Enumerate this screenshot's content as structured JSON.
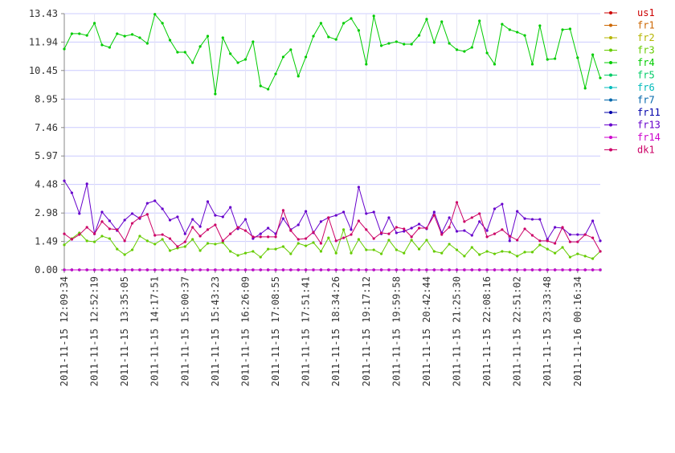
{
  "chart_data": {
    "type": "line",
    "categories": [
      "2011-11-15 12:09:34",
      null,
      null,
      null,
      "2011-11-15 12:52:19",
      null,
      null,
      null,
      "2011-11-15 13:35:05",
      null,
      null,
      null,
      "2011-11-15 14:17:51",
      null,
      null,
      null,
      "2011-11-15 15:00:37",
      null,
      null,
      null,
      "2011-11-15 15:43:23",
      null,
      null,
      null,
      "2011-11-15 16:26:09",
      null,
      null,
      null,
      "2011-11-15 17:08:55",
      null,
      null,
      null,
      "2011-11-15 17:51:41",
      null,
      null,
      null,
      "2011-11-15 18:34:26",
      null,
      null,
      null,
      "2011-11-15 19:17:12",
      null,
      null,
      null,
      "2011-11-15 19:59:58",
      null,
      null,
      null,
      "2011-11-15 20:42:44",
      null,
      null,
      null,
      "2011-11-15 21:25:30",
      null,
      null,
      null,
      "2011-11-15 22:08:16",
      null,
      null,
      null,
      "2011-11-15 22:51:02",
      null,
      null,
      null,
      "2011-11-15 23:33:48",
      null,
      null,
      null,
      "2011-11-16 00:16:34",
      null,
      null,
      null
    ],
    "ylim": [
      0,
      13.43
    ],
    "yticks": [
      {
        "value": 0,
        "label": "0.00"
      },
      1.49,
      2.98,
      4.48,
      5.97,
      7.46,
      8.95,
      10.45,
      11.94,
      13.43
    ],
    "grid": true,
    "legend": "right",
    "series": [
      {
        "name": "us1",
        "color": "#cc0000",
        "values": [
          0,
          0,
          0,
          0,
          0,
          0,
          0,
          0,
          0,
          0,
          0,
          0,
          0,
          0,
          0,
          0,
          0,
          0,
          0,
          0,
          0,
          0,
          0,
          0,
          0,
          0,
          0,
          0,
          0,
          0,
          0,
          0,
          0,
          0,
          0,
          0,
          0,
          0,
          0,
          0,
          0,
          0,
          0,
          0,
          0,
          0,
          0,
          0,
          0,
          0,
          0,
          0,
          0,
          0,
          0,
          0,
          0,
          0,
          0,
          0,
          0,
          0,
          0,
          0,
          0,
          0,
          0,
          0,
          0,
          0,
          0,
          0
        ]
      },
      {
        "name": "fr1",
        "color": "#cc6600",
        "values": [
          0,
          0,
          0,
          0,
          0,
          0,
          0,
          0,
          0,
          0,
          0,
          0,
          0,
          0,
          0,
          0,
          0,
          0,
          0,
          0,
          0,
          0,
          0,
          0,
          0,
          0,
          0,
          0,
          0,
          0,
          0,
          0,
          0,
          0,
          0,
          0,
          0,
          0,
          0,
          0,
          0,
          0,
          0,
          0,
          0,
          0,
          0,
          0,
          0,
          0,
          0,
          0,
          0,
          0,
          0,
          0,
          0,
          0,
          0,
          0,
          0,
          0,
          0,
          0,
          0,
          0,
          0,
          0,
          0,
          0,
          0,
          0
        ]
      },
      {
        "name": "fr2",
        "color": "#b5b500",
        "values": [
          0,
          0,
          0,
          0,
          0,
          0,
          0,
          0,
          0,
          0,
          0,
          0,
          0,
          0,
          0,
          0,
          0,
          0,
          0,
          0,
          0,
          0,
          0,
          0,
          0,
          0,
          0,
          0,
          0,
          0,
          0,
          0,
          0,
          0,
          0,
          0,
          0,
          0,
          0,
          0,
          0,
          0,
          0,
          0,
          0,
          0,
          0,
          0,
          0,
          0,
          0,
          0,
          0,
          0,
          0,
          0,
          0,
          0,
          0,
          0,
          0,
          0,
          0,
          0,
          0,
          0,
          0,
          0,
          0,
          0,
          0,
          0
        ]
      },
      {
        "name": "fr3",
        "color": "#66cc00",
        "values": [
          1.31,
          1.64,
          1.94,
          1.52,
          1.47,
          1.77,
          1.64,
          1.09,
          0.8,
          1.05,
          1.77,
          1.52,
          1.35,
          1.6,
          1.01,
          1.14,
          1.22,
          1.6,
          1.01,
          1.39,
          1.35,
          1.43,
          0.97,
          0.76,
          0.88,
          0.97,
          0.67,
          1.09,
          1.09,
          1.22,
          0.84,
          1.39,
          1.26,
          1.43,
          0.97,
          1.68,
          0.88,
          2.11,
          0.88,
          1.6,
          1.05,
          1.05,
          0.84,
          1.56,
          1.05,
          0.88,
          1.56,
          1.09,
          1.56,
          0.97,
          0.88,
          1.35,
          1.05,
          0.72,
          1.18,
          0.8,
          0.97,
          0.84,
          0.97,
          0.93,
          0.72,
          0.93,
          0.93,
          1.31,
          1.09,
          0.88,
          1.18,
          0.67,
          0.84,
          0.72,
          0.59,
          0.97
        ]
      },
      {
        "name": "fr4",
        "color": "#00cc00",
        "values": [
          11.58,
          12.38,
          12.38,
          12.29,
          12.93,
          11.79,
          11.66,
          12.38,
          12.25,
          12.34,
          12.17,
          11.87,
          13.4,
          12.93,
          12.04,
          11.41,
          11.41,
          10.86,
          11.71,
          12.25,
          9.22,
          12.17,
          11.33,
          10.86,
          11.03,
          11.96,
          9.64,
          9.47,
          10.27,
          11.16,
          11.54,
          10.15,
          11.16,
          12.25,
          12.93,
          12.21,
          12.08,
          12.93,
          13.18,
          12.55,
          10.78,
          13.31,
          11.75,
          11.87,
          11.96,
          11.83,
          11.83,
          12.29,
          13.14,
          11.92,
          13.01,
          11.87,
          11.54,
          11.45,
          11.66,
          13.05,
          11.37,
          10.78,
          12.88,
          12.59,
          12.46,
          12.29,
          10.78,
          12.8,
          11.03,
          11.07,
          12.59,
          12.63,
          11.12,
          9.52,
          11.28,
          10.06
        ]
      },
      {
        "name": "fr5",
        "color": "#00cc66",
        "values": [
          0,
          0,
          0,
          0,
          0,
          0,
          0,
          0,
          0,
          0,
          0,
          0,
          0,
          0,
          0,
          0,
          0,
          0,
          0,
          0,
          0,
          0,
          0,
          0,
          0,
          0,
          0,
          0,
          0,
          0,
          0,
          0,
          0,
          0,
          0,
          0,
          0,
          0,
          0,
          0,
          0,
          0,
          0,
          0,
          0,
          0,
          0,
          0,
          0,
          0,
          0,
          0,
          0,
          0,
          0,
          0,
          0,
          0,
          0,
          0,
          0,
          0,
          0,
          0,
          0,
          0,
          0,
          0,
          0,
          0,
          0,
          0
        ]
      },
      {
        "name": "fr6",
        "color": "#00bbbb",
        "values": [
          0,
          0,
          0,
          0,
          0,
          0,
          0,
          0,
          0,
          0,
          0,
          0,
          0,
          0,
          0,
          0,
          0,
          0,
          0,
          0,
          0,
          0,
          0,
          0,
          0,
          0,
          0,
          0,
          0,
          0,
          0,
          0,
          0,
          0,
          0,
          0,
          0,
          0,
          0,
          0,
          0,
          0,
          0,
          0,
          0,
          0,
          0,
          0,
          0,
          0,
          0,
          0,
          0,
          0,
          0,
          0,
          0,
          0,
          0,
          0,
          0,
          0,
          0,
          0,
          0,
          0,
          0,
          0,
          0,
          0,
          0,
          0
        ]
      },
      {
        "name": "fr7",
        "color": "#0066aa",
        "values": [
          0,
          0,
          0,
          0,
          0,
          0,
          0,
          0,
          0,
          0,
          0,
          0,
          0,
          0,
          0,
          0,
          0,
          0,
          0,
          0,
          0,
          0,
          0,
          0,
          0,
          0,
          0,
          0,
          0,
          0,
          0,
          0,
          0,
          0,
          0,
          0,
          0,
          0,
          0,
          0,
          0,
          0,
          0,
          0,
          0,
          0,
          0,
          0,
          0,
          0,
          0,
          0,
          0,
          0,
          0,
          0,
          0,
          0,
          0,
          0,
          0,
          0,
          0,
          0,
          0,
          0,
          0,
          0,
          0,
          0,
          0,
          0
        ]
      },
      {
        "name": "fr11",
        "color": "#0000aa",
        "values": [
          0,
          0,
          0,
          0,
          0,
          0,
          0,
          0,
          0,
          0,
          0,
          0,
          0,
          0,
          0,
          0,
          0,
          0,
          0,
          0,
          0,
          0,
          0,
          0,
          0,
          0,
          0,
          0,
          0,
          0,
          0,
          0,
          0,
          0,
          0,
          0,
          0,
          0,
          0,
          0,
          0,
          0,
          0,
          0,
          0,
          0,
          0,
          0,
          0,
          0,
          0,
          0,
          0,
          0,
          0,
          0,
          0,
          0,
          0,
          0,
          0,
          0,
          0,
          0,
          0,
          0,
          0,
          0,
          0,
          0,
          0,
          0
        ]
      },
      {
        "name": "fr13",
        "color": "#6600cc",
        "values": [
          4.67,
          4.04,
          2.95,
          4.51,
          1.89,
          3.03,
          2.57,
          2.06,
          2.61,
          2.95,
          2.69,
          3.49,
          3.62,
          3.2,
          2.61,
          2.78,
          1.89,
          2.65,
          2.27,
          3.58,
          2.86,
          2.78,
          3.28,
          2.15,
          2.65,
          1.64,
          1.89,
          2.19,
          1.89,
          2.69,
          2.11,
          2.36,
          3.07,
          1.94,
          2.53,
          2.74,
          2.86,
          3.03,
          2.11,
          4.34,
          2.95,
          3.03,
          1.89,
          2.74,
          1.94,
          2.02,
          2.19,
          2.4,
          2.15,
          3.03,
          1.94,
          2.74,
          2.02,
          2.06,
          1.81,
          2.53,
          2.06,
          3.2,
          3.45,
          1.52,
          3.07,
          2.69,
          2.65,
          2.65,
          1.6,
          2.23,
          2.19,
          1.85,
          1.85,
          1.85,
          2.57,
          1.52
        ]
      },
      {
        "name": "fr14",
        "color": "#cc00cc",
        "values": [
          0,
          0,
          0,
          0,
          0,
          0,
          0,
          0,
          0,
          0,
          0,
          0,
          0,
          0,
          0,
          0,
          0,
          0,
          0,
          0,
          0,
          0,
          0,
          0,
          0,
          0,
          0,
          0,
          0,
          0,
          0,
          0,
          0,
          0,
          0,
          0,
          0,
          0,
          0,
          0,
          0,
          0,
          0,
          0,
          0,
          0,
          0,
          0,
          0,
          0,
          0,
          0,
          0,
          0,
          0,
          0,
          0,
          0,
          0,
          0,
          0,
          0,
          0,
          0,
          0,
          0,
          0,
          0,
          0,
          0,
          0,
          0
        ]
      },
      {
        "name": "dk1",
        "color": "#cc0066",
        "values": [
          1.89,
          1.6,
          1.85,
          2.23,
          1.89,
          2.53,
          2.15,
          2.11,
          1.52,
          2.44,
          2.74,
          2.91,
          1.81,
          1.85,
          1.64,
          1.22,
          1.47,
          2.23,
          1.77,
          2.11,
          2.36,
          1.52,
          1.89,
          2.23,
          2.06,
          1.73,
          1.73,
          1.73,
          1.73,
          3.12,
          2.06,
          1.6,
          1.64,
          1.98,
          1.39,
          2.74,
          1.52,
          1.68,
          1.85,
          2.57,
          2.11,
          1.64,
          1.94,
          1.89,
          2.23,
          2.15,
          1.73,
          2.19,
          2.19,
          2.86,
          1.85,
          2.23,
          3.54,
          2.53,
          2.74,
          2.95,
          1.73,
          1.89,
          2.11,
          1.77,
          1.56,
          2.15,
          1.81,
          1.52,
          1.52,
          1.39,
          2.23,
          1.47,
          1.47,
          1.85,
          1.68,
          0.97
        ]
      }
    ]
  }
}
